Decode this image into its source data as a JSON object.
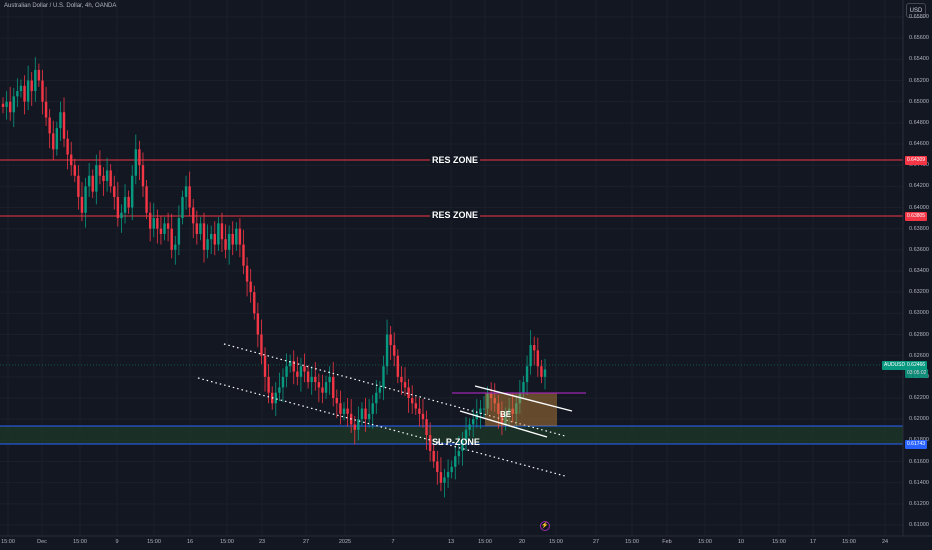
{
  "header": {
    "title": "Australian Dollar / U.S. Dollar, 4h, OANDA",
    "currency_button": "USD"
  },
  "price_axis": {
    "ticks": [
      "0.65800",
      "0.65600",
      "0.65400",
      "0.65200",
      "0.65000",
      "0.64800",
      "0.64600",
      "0.64400",
      "0.64200",
      "0.64000",
      "0.63800",
      "0.63600",
      "0.63400",
      "0.63200",
      "0.63000",
      "0.62800",
      "0.62600",
      "0.62400",
      "0.62200",
      "0.62000",
      "0.61800",
      "0.61600",
      "0.61400",
      "0.61200",
      "0.61000"
    ]
  },
  "time_axis": {
    "ticks": [
      "15:00",
      "Dec",
      "15:00",
      "9",
      "15:00",
      "16",
      "15:00",
      "23",
      "27",
      "2025",
      "7",
      "13",
      "15:00",
      "20",
      "15:00",
      "27",
      "15:00",
      "Feb",
      "15:00",
      "10",
      "15:00",
      "17",
      "15:00",
      "24"
    ]
  },
  "lines": {
    "res_zone_1": {
      "label": "RES ZONE",
      "price": "0.64309",
      "color": "#f23645"
    },
    "res_zone_2": {
      "label": "RES ZONE",
      "price": "0.63805",
      "color": "#f23645"
    },
    "support_zone": {
      "price": "0.61743",
      "color": "#2962ff"
    }
  },
  "current": {
    "symbol": "AUDUSD",
    "price": "0.62466",
    "countdown": "03:05:02",
    "color": "#089981"
  },
  "annotations": {
    "sl_label": "SL P-ZONE",
    "be_label": "BE"
  },
  "colors": {
    "up": "#089981",
    "down": "#f23645",
    "background": "#131722",
    "grid": "#1e222d"
  },
  "chart_data": {
    "type": "candlestick",
    "symbol": "AUDUSD",
    "timeframe": "4h",
    "ylim": [
      0.61,
      0.659
    ],
    "close_series": [
      0.6495,
      0.65,
      0.649,
      0.6505,
      0.651,
      0.6515,
      0.65,
      0.652,
      0.651,
      0.653,
      0.652,
      0.65,
      0.6485,
      0.647,
      0.6455,
      0.6475,
      0.649,
      0.6465,
      0.645,
      0.644,
      0.643,
      0.641,
      0.6395,
      0.642,
      0.643,
      0.6415,
      0.644,
      0.643,
      0.6425,
      0.6435,
      0.642,
      0.641,
      0.639,
      0.6395,
      0.641,
      0.64,
      0.643,
      0.6455,
      0.644,
      0.642,
      0.6395,
      0.638,
      0.639,
      0.638,
      0.6375,
      0.6385,
      0.638,
      0.636,
      0.6365,
      0.639,
      0.641,
      0.642,
      0.64,
      0.6385,
      0.6375,
      0.6385,
      0.636,
      0.637,
      0.6375,
      0.6365,
      0.6385,
      0.637,
      0.636,
      0.6375,
      0.6365,
      0.638,
      0.6365,
      0.6345,
      0.633,
      0.632,
      0.63,
      0.628,
      0.626,
      0.624,
      0.6225,
      0.6215,
      0.6225,
      0.623,
      0.624,
      0.625,
      0.6255,
      0.6245,
      0.624,
      0.625,
      0.6245,
      0.6235,
      0.624,
      0.6235,
      0.623,
      0.6225,
      0.6235,
      0.624,
      0.622,
      0.6215,
      0.6205,
      0.621,
      0.6205,
      0.6195,
      0.619,
      0.62,
      0.621,
      0.62,
      0.6205,
      0.6215,
      0.6225,
      0.623,
      0.625,
      0.628,
      0.627,
      0.626,
      0.624,
      0.6235,
      0.623,
      0.622,
      0.6215,
      0.621,
      0.6205,
      0.62,
      0.6185,
      0.617,
      0.616,
      0.615,
      0.614,
      0.6145,
      0.615,
      0.6155,
      0.6165,
      0.617,
      0.618,
      0.619,
      0.6195,
      0.62,
      0.6205,
      0.621,
      0.621,
      0.6225,
      0.622,
      0.6215,
      0.6205,
      0.6195,
      0.6205,
      0.621,
      0.6205,
      0.6215,
      0.6225,
      0.6235,
      0.625,
      0.627,
      0.6265,
      0.625,
      0.624,
      0.6247
    ]
  }
}
